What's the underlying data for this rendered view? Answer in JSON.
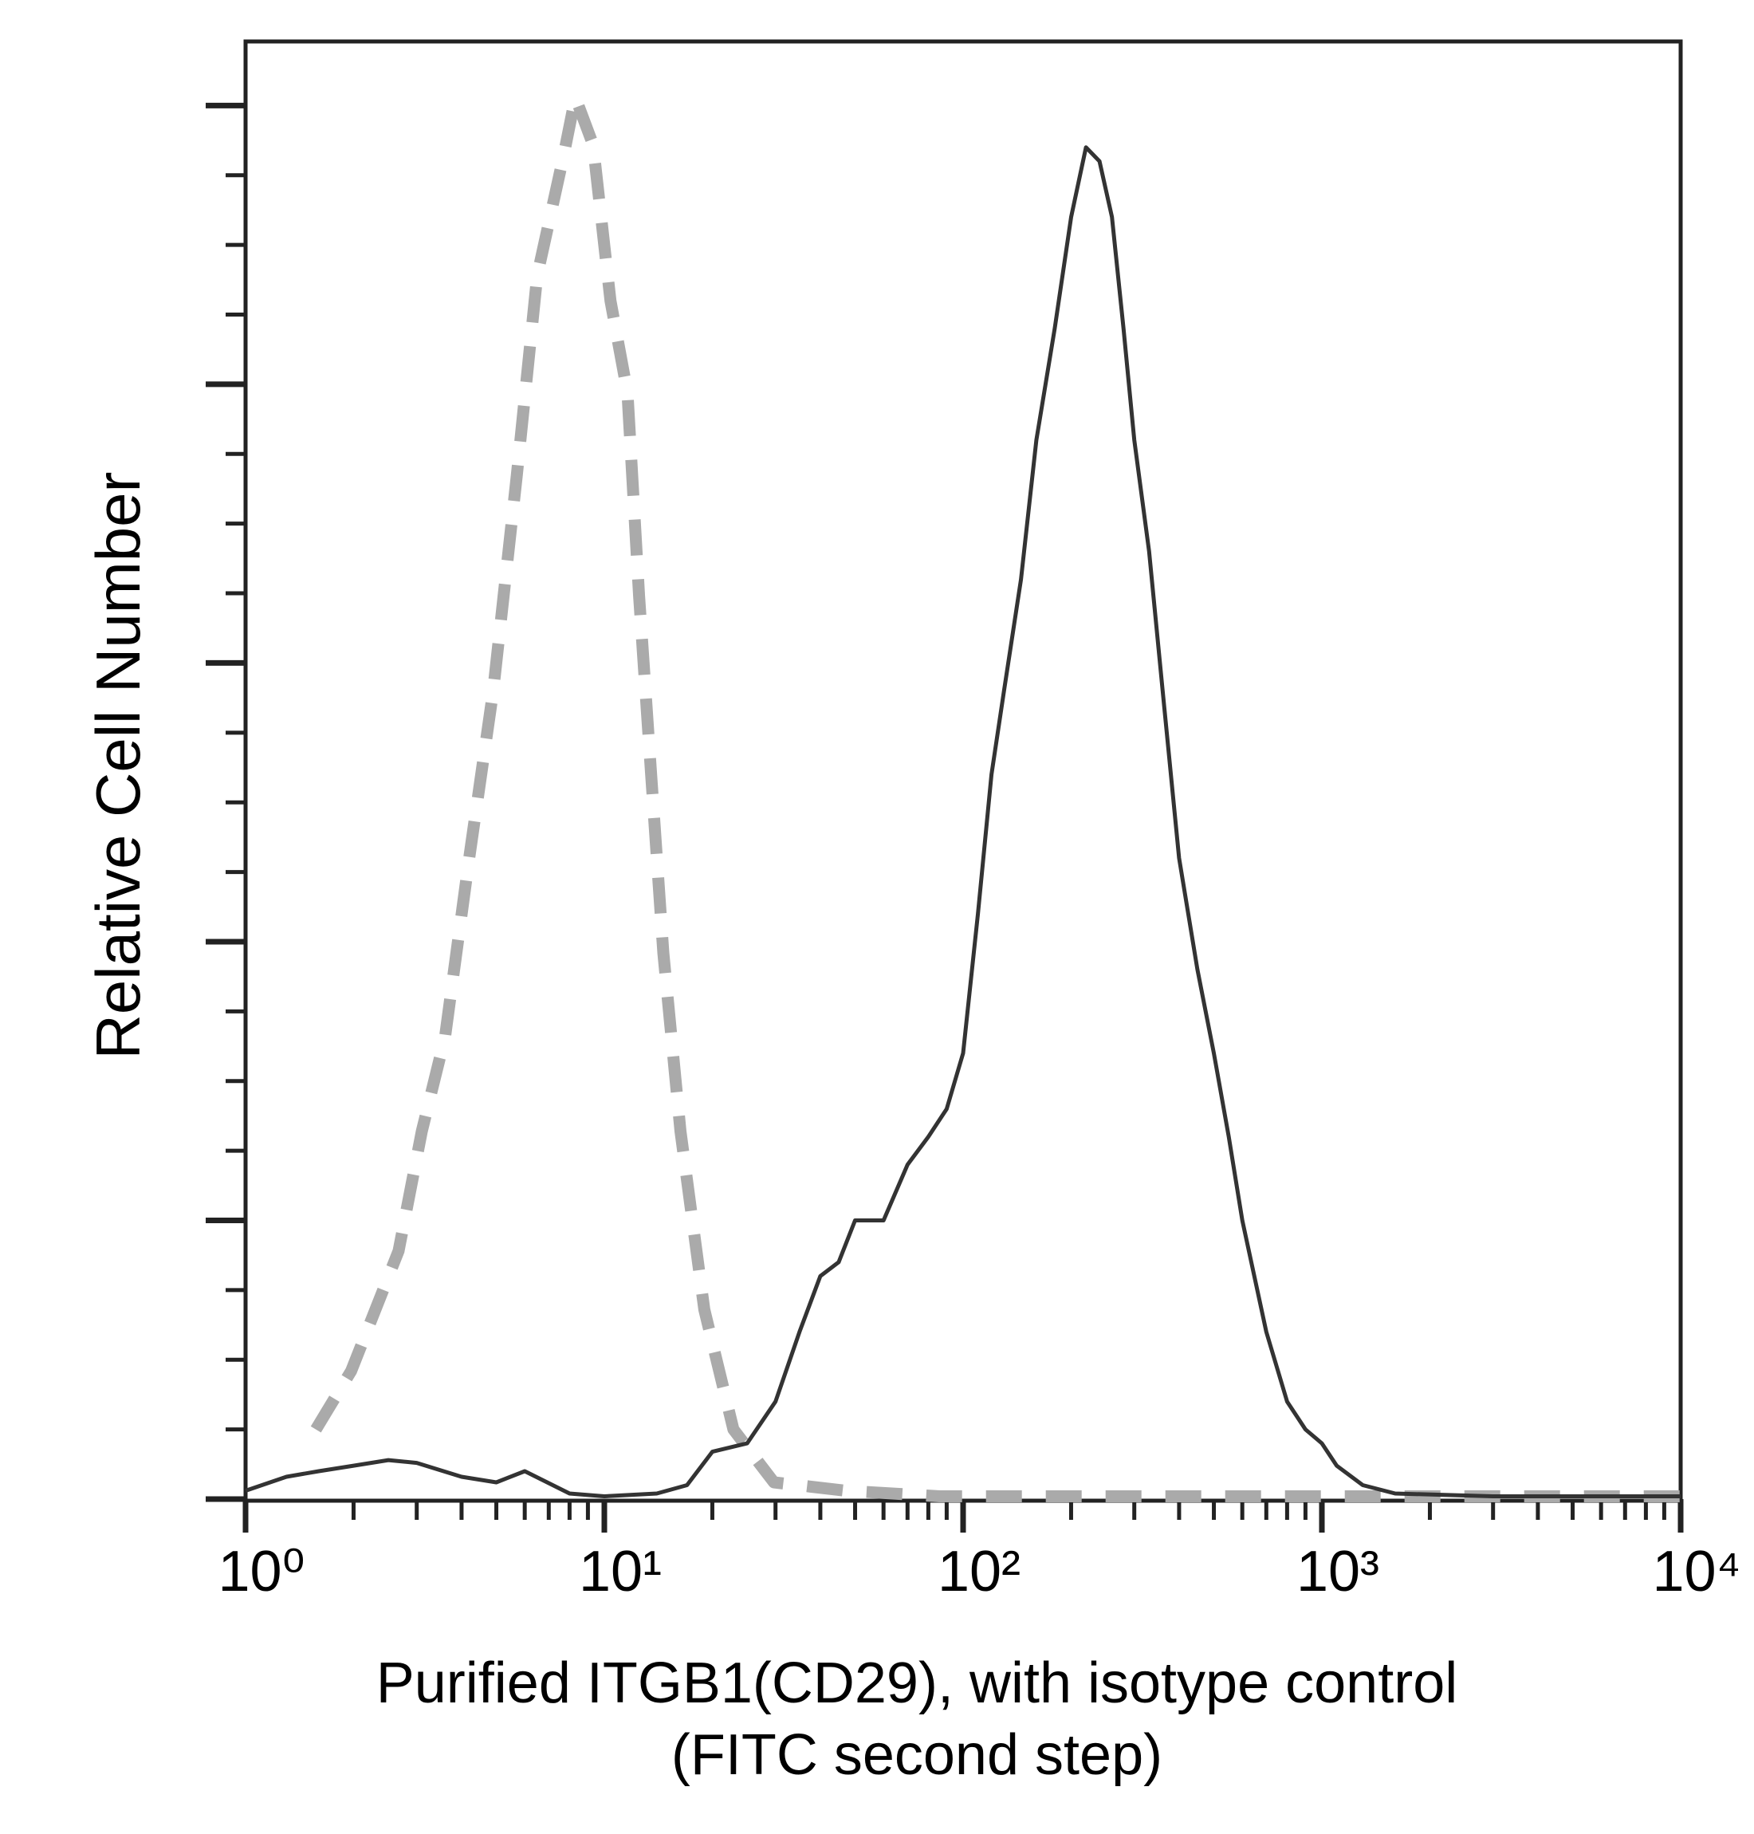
{
  "chart_data": {
    "type": "line",
    "y_label": "Relative Cell Number",
    "x_label": [
      "Purified ITGB1(CD29), with isotype control",
      "(FITC second step)"
    ],
    "xlog": true,
    "xlim": [
      1,
      10000
    ],
    "xticks": [
      {
        "value": 1,
        "label": "10⁰"
      },
      {
        "value": 10,
        "label": "10¹"
      },
      {
        "value": 100,
        "label": "10²"
      },
      {
        "value": 1000,
        "label": "10³"
      },
      {
        "value": 10000,
        "label": "10⁴"
      }
    ],
    "xminor_ticks": [
      2,
      3,
      4,
      5,
      6,
      7,
      8,
      9,
      20,
      30,
      40,
      50,
      60,
      70,
      80,
      90,
      200,
      300,
      400,
      500,
      600,
      700,
      800,
      900,
      2000,
      3000,
      4000,
      5000,
      6000,
      7000,
      8000,
      9000
    ],
    "ylim": [
      0,
      5.23
    ],
    "yticks": [
      0,
      1,
      2,
      3,
      4,
      5
    ],
    "yminor_ticks": [
      0.25,
      0.5,
      0.75,
      1.25,
      1.5,
      1.75,
      2.25,
      2.5,
      2.75,
      3.25,
      3.5,
      3.75,
      4.25,
      4.5,
      4.75,
      5.25
    ],
    "series": [
      {
        "color": "#aaaaaa",
        "dashed": true,
        "x": [
          1.57,
          1.97,
          2.67,
          3.1,
          3.6,
          4.2,
          4.9,
          5.7,
          6.5,
          7.7,
          8.3,
          9.3,
          10.4,
          11.6,
          12.5,
          13.5,
          14.6,
          16.3,
          19,
          22.9,
          29.7,
          47,
          86,
          183,
          390,
          830,
          10000
        ],
        "values": [
          0.25,
          0.46,
          0.89,
          1.32,
          1.66,
          2.3,
          2.9,
          3.67,
          4.39,
          4.82,
          5.03,
          4.86,
          4.3,
          3.97,
          3.24,
          2.6,
          1.96,
          1.32,
          0.68,
          0.25,
          0.06,
          0.03,
          0.01,
          0.01,
          0.01,
          0.01,
          0.01
        ]
      },
      {
        "color": "#333333",
        "dashed": false,
        "x": [
          1,
          1.3,
          1.6,
          2,
          2.5,
          3,
          4,
          5,
          6,
          8,
          10,
          14,
          17,
          20,
          25,
          30,
          35,
          40,
          45,
          50,
          60,
          70,
          80,
          90,
          100,
          110,
          120,
          130,
          145,
          160,
          180,
          200,
          220,
          240,
          260,
          280,
          300,
          330,
          360,
          400,
          450,
          500,
          550,
          600,
          700,
          800,
          900,
          1000,
          1100,
          1300,
          1600,
          3000,
          10000
        ],
        "values": [
          0.03,
          0.08,
          0.1,
          0.12,
          0.14,
          0.13,
          0.08,
          0.06,
          0.1,
          0.02,
          0.01,
          0.02,
          0.05,
          0.17,
          0.2,
          0.35,
          0.6,
          0.8,
          0.85,
          1.0,
          1.0,
          1.2,
          1.3,
          1.4,
          1.6,
          2.1,
          2.6,
          2.9,
          3.3,
          3.8,
          4.2,
          4.6,
          4.85,
          4.8,
          4.6,
          4.2,
          3.8,
          3.4,
          2.9,
          2.3,
          1.9,
          1.6,
          1.3,
          1.0,
          0.6,
          0.35,
          0.25,
          0.2,
          0.12,
          0.05,
          0.02,
          0.01,
          0.01
        ]
      }
    ]
  }
}
